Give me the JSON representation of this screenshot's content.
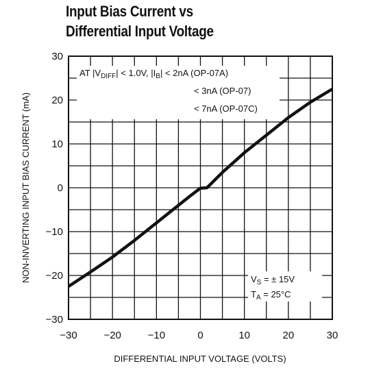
{
  "chart_data": {
    "type": "line",
    "title_lines": [
      "Input Bias Current vs",
      "Differential Input Voltage"
    ],
    "xlabel": "DIFFERENTIAL INPUT VOLTAGE (VOLTS)",
    "ylabel": "NON-INVERTING INPUT BIAS CURRENT (mA)",
    "xlim": [
      -30,
      30
    ],
    "ylim": [
      -30,
      30
    ],
    "x_ticks": [
      "−30",
      "−20",
      "−10",
      "0",
      "10",
      "20",
      "30"
    ],
    "y_ticks": [
      "30",
      "20",
      "10",
      "0",
      "−10",
      "−20",
      "−30"
    ],
    "grid": true,
    "series": [
      {
        "x": [
          -30,
          -25,
          -20,
          -15,
          -10,
          -5,
          -2.5,
          0,
          1.5,
          5,
          10,
          15,
          20,
          25,
          30
        ],
        "y": [
          -22.5,
          -19.2,
          -15.8,
          -12,
          -8,
          -4,
          -2,
          -0.1,
          0,
          3.5,
          8,
          12,
          16,
          19.5,
          22.5
        ]
      }
    ],
    "annotations": {
      "top": [
        "AT |V",
        "DIFF",
        "| < 1.0V, |I",
        "B",
        "| < 2nA (OP-07A)",
        "< 3nA (OP-07)",
        "< 7nA (OP-07C)"
      ],
      "bottom": [
        "V",
        "S",
        " = ± 15V",
        "T",
        "A",
        " = 25°C"
      ]
    }
  }
}
